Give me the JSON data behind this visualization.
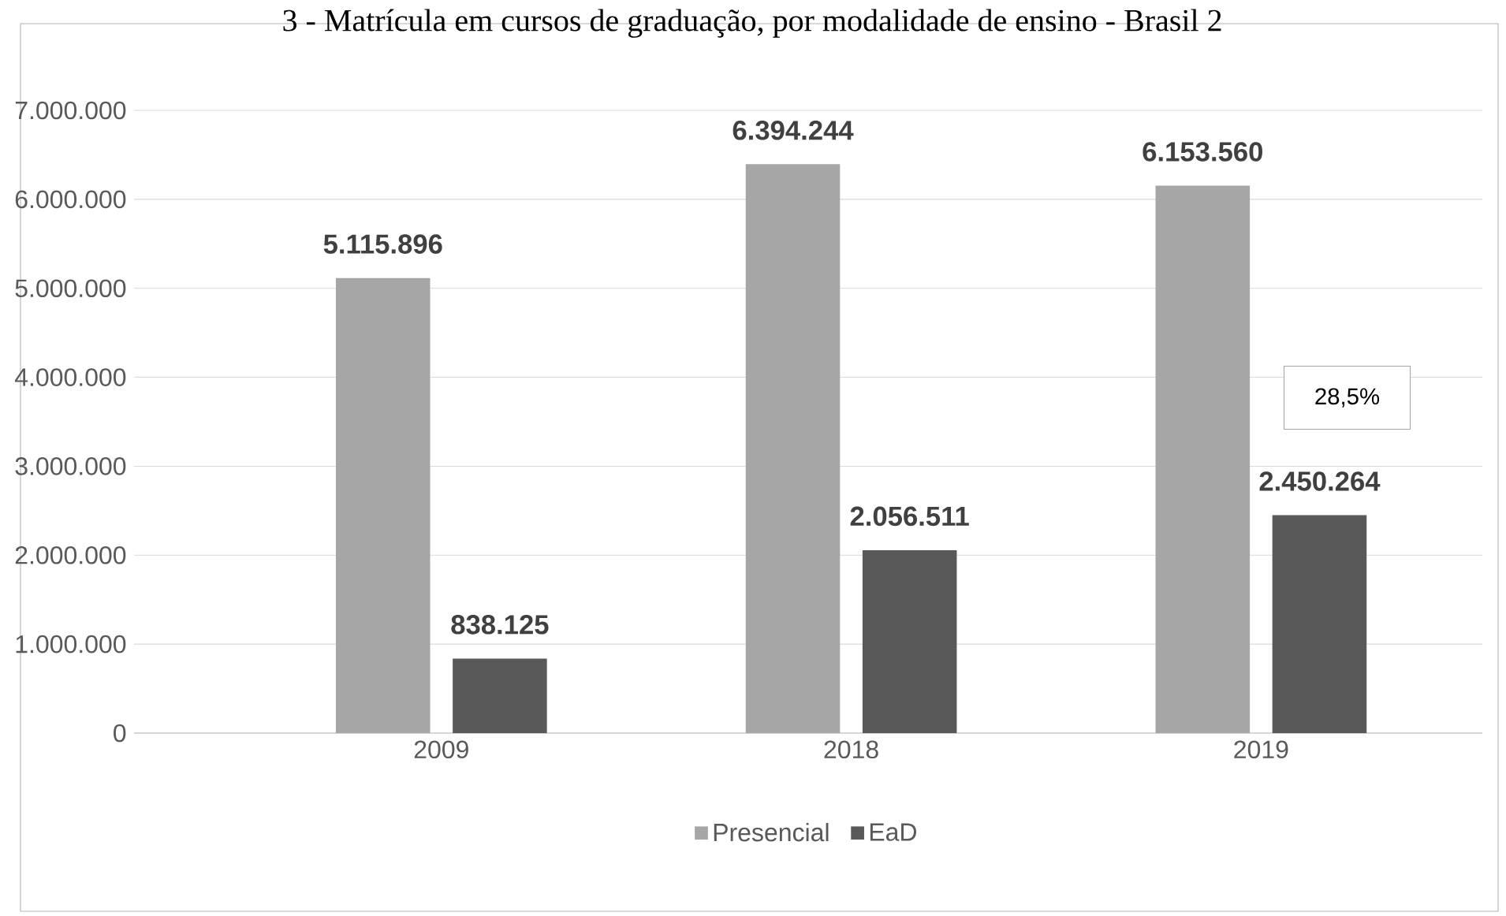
{
  "chart_data": {
    "type": "bar",
    "title": "3 - Matrícula em cursos de graduação, por modalidade de ensino - Brasil 2",
    "categories": [
      "2009",
      "2018",
      "2019"
    ],
    "series": [
      {
        "name": "Presencial",
        "color": "#a6a6a6",
        "values": [
          5115896,
          6394244,
          6153560
        ],
        "value_labels": [
          "5.115.896",
          "6.394.244",
          "6.153.560"
        ]
      },
      {
        "name": "EaD",
        "color": "#595959",
        "values": [
          838125,
          2056511,
          2450264
        ],
        "value_labels": [
          "838.125",
          "2.056.511",
          "2.450.264"
        ]
      }
    ],
    "ylim": [
      0,
      7000000
    ],
    "yticks": [
      {
        "value": 0,
        "label": "0"
      },
      {
        "value": 1000000,
        "label": "1.000.000"
      },
      {
        "value": 2000000,
        "label": "2.000.000"
      },
      {
        "value": 3000000,
        "label": "3.000.000"
      },
      {
        "value": 4000000,
        "label": "4.000.000"
      },
      {
        "value": 5000000,
        "label": "5.000.000"
      },
      {
        "value": 6000000,
        "label": "6.000.000"
      },
      {
        "value": 7000000,
        "label": "7.000.000"
      }
    ],
    "grid": "y",
    "legend": "bottom",
    "annotations": [
      "28,5%"
    ]
  }
}
